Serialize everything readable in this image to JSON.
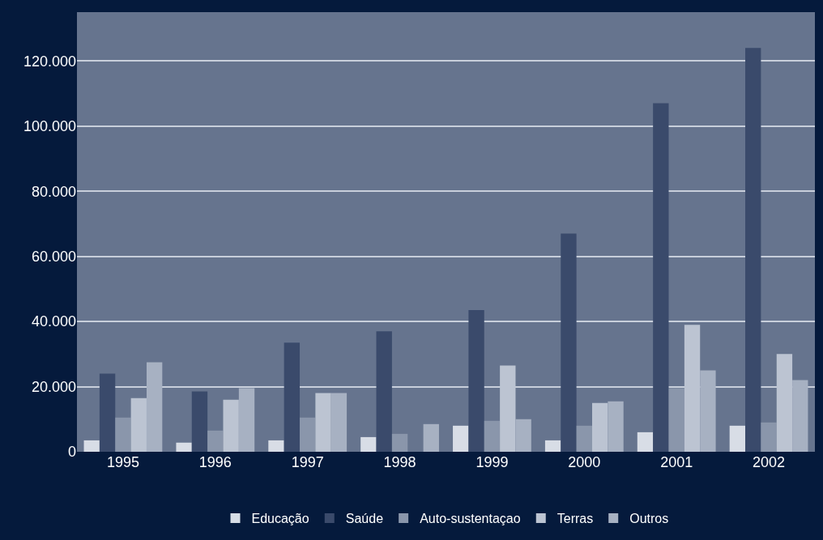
{
  "chart_data": {
    "type": "bar",
    "categories": [
      "1995",
      "1996",
      "1997",
      "1998",
      "1999",
      "2000",
      "2001",
      "2002"
    ],
    "series": [
      {
        "name": "Educação",
        "color": "#d8dde6",
        "values": [
          3500,
          2800,
          3500,
          4500,
          8000,
          3500,
          6000,
          8000
        ]
      },
      {
        "name": "Saúde",
        "color": "#3a4a6b",
        "values": [
          24000,
          18500,
          33500,
          37000,
          43500,
          67000,
          107000,
          124000
        ]
      },
      {
        "name": "Auto-sustentaçao",
        "color": "#8a96ab",
        "values": [
          10500,
          6500,
          10500,
          5500,
          9500,
          8000,
          19500,
          9000
        ]
      },
      {
        "name": "Terras",
        "color": "#bcc4d2",
        "values": [
          16500,
          16000,
          18000,
          0,
          26500,
          15000,
          39000,
          30000
        ]
      },
      {
        "name": "Outros",
        "color": "#a7b1c2",
        "values": [
          27500,
          19500,
          18000,
          8500,
          10000,
          15500,
          25000,
          22000
        ]
      }
    ],
    "ylim": [
      0,
      135000
    ],
    "yticks": [
      {
        "value": 0,
        "label": "0"
      },
      {
        "value": 20000,
        "label": "20.000"
      },
      {
        "value": 40000,
        "label": "40.000"
      },
      {
        "value": 60000,
        "label": "60.000"
      },
      {
        "value": 80000,
        "label": "80.000"
      },
      {
        "value": 100000,
        "label": "100.000"
      },
      {
        "value": 120000,
        "label": "120.000"
      }
    ],
    "grid": "y",
    "legend": "bottom"
  }
}
